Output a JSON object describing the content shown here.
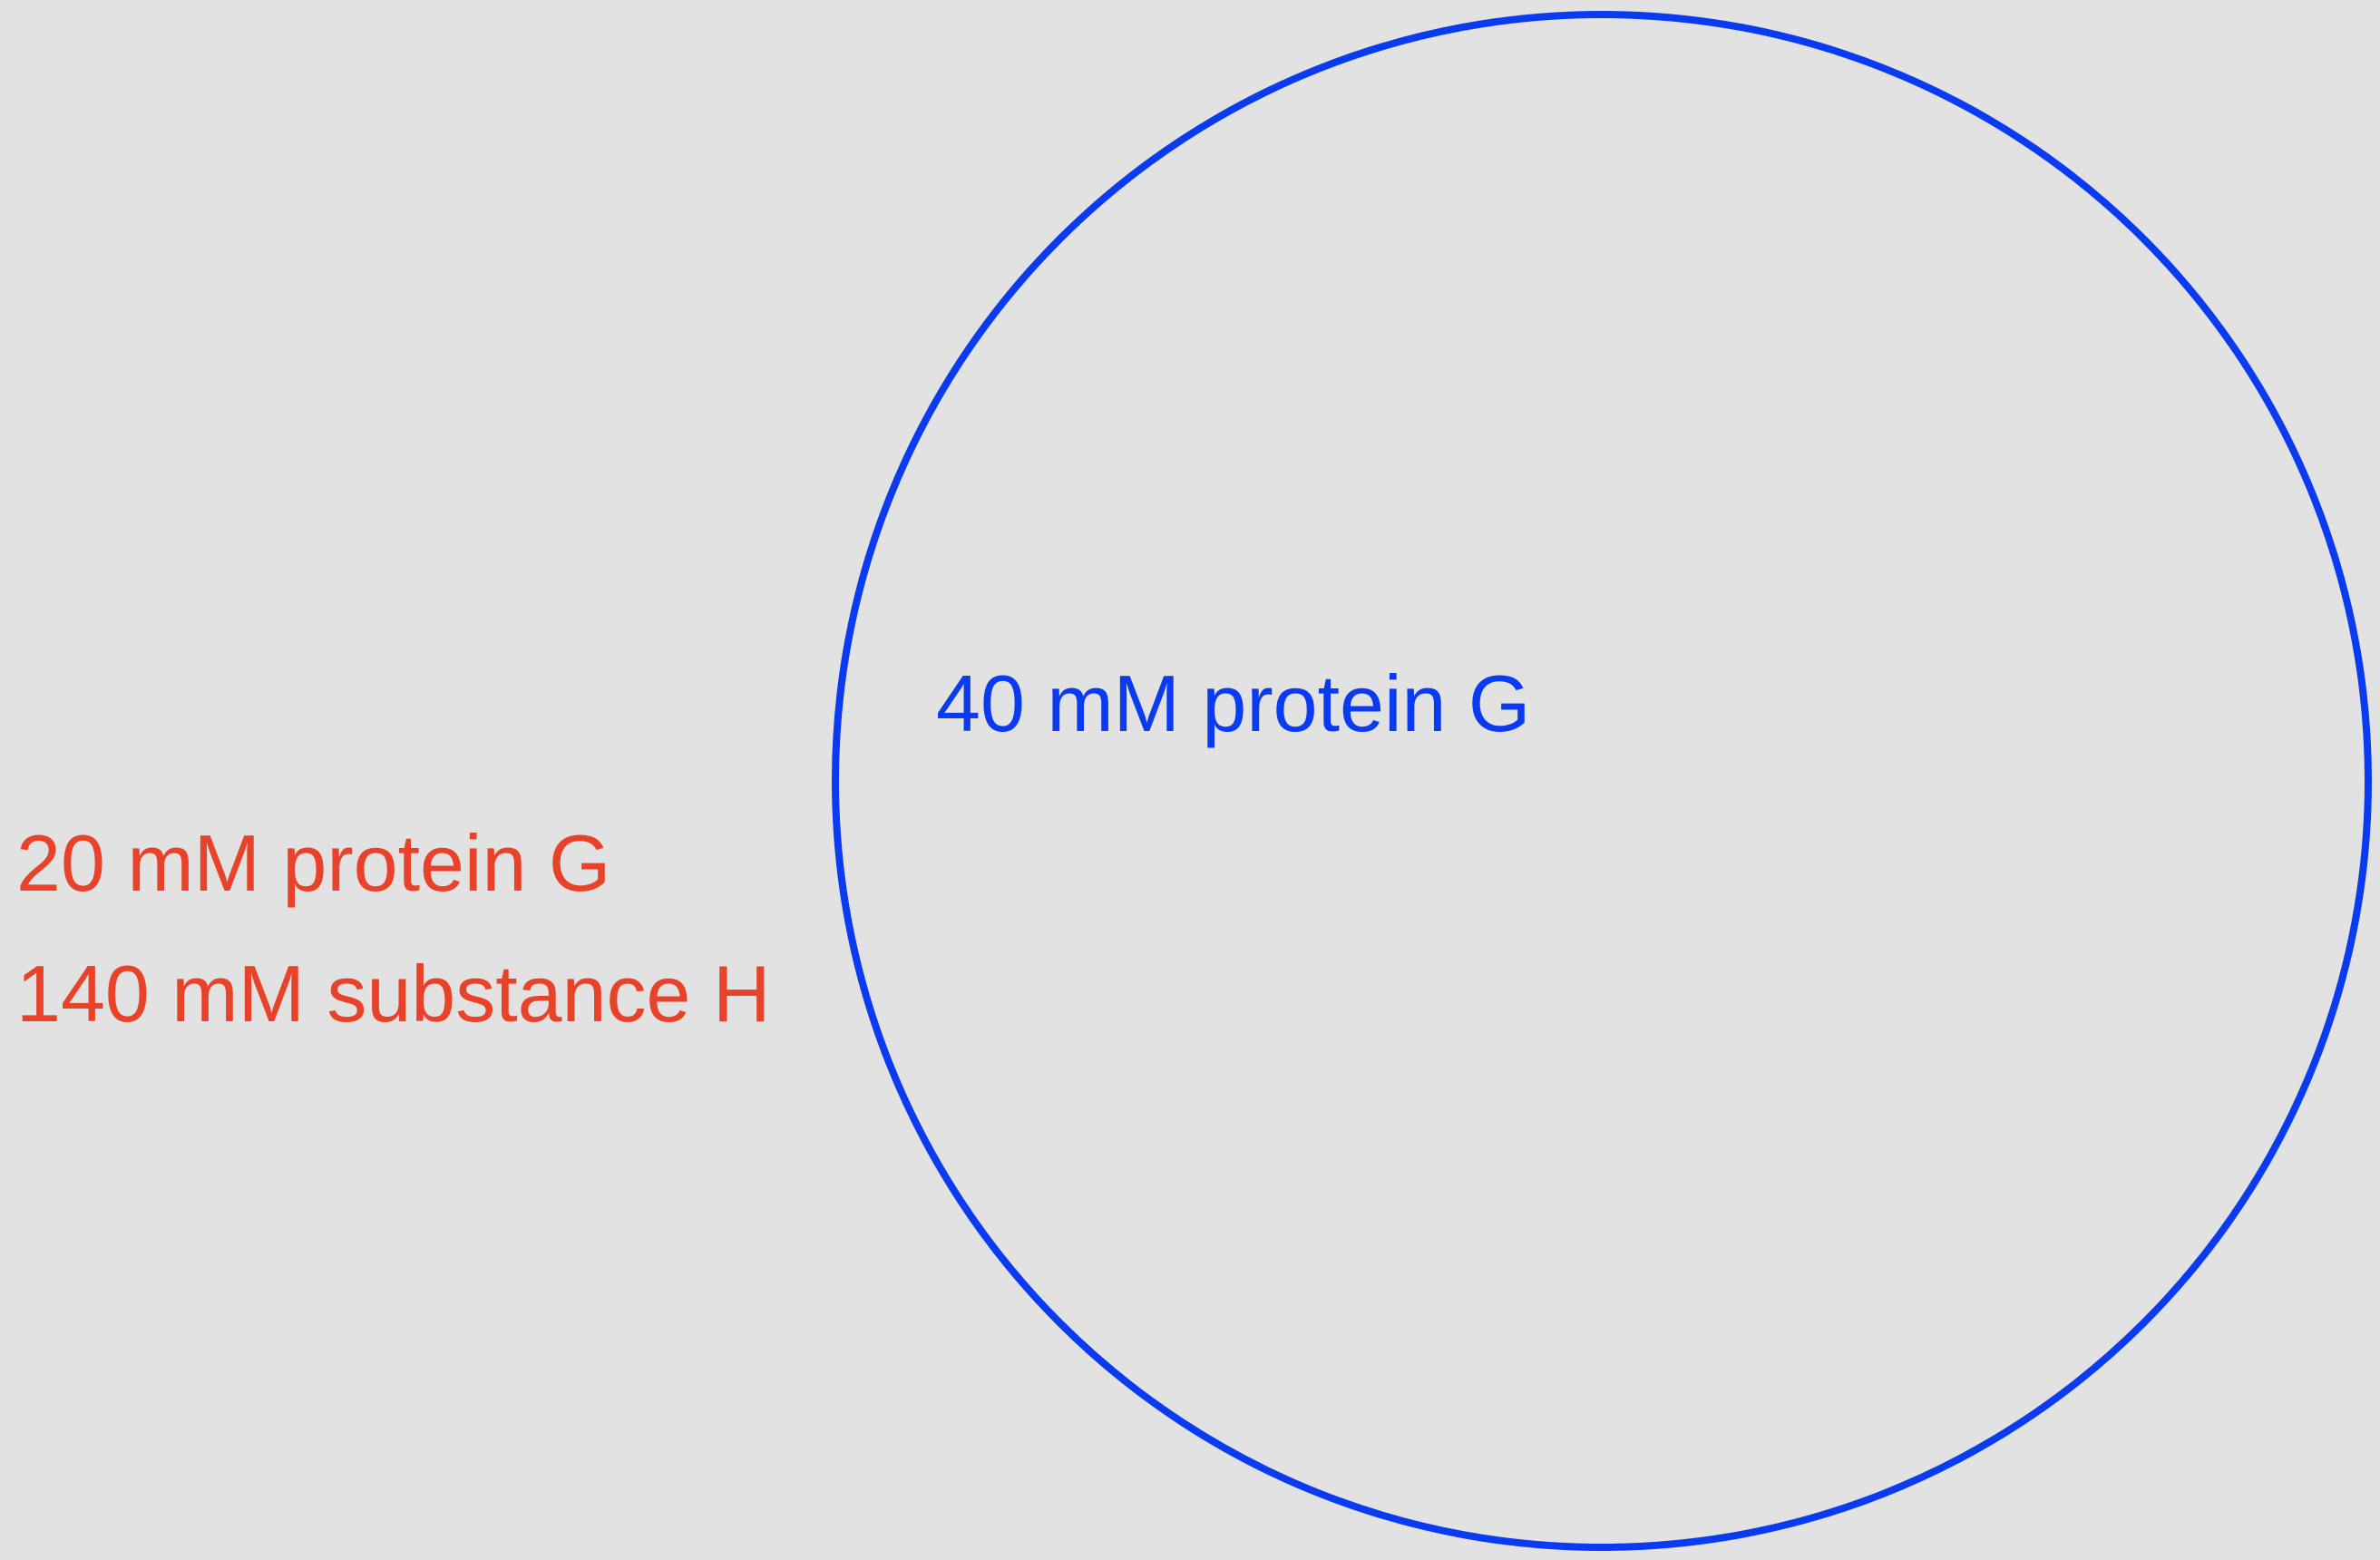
{
  "outside_solution": {
    "color": "#e8432a",
    "lines": [
      "20 mM protein G",
      "140 mM substance H"
    ]
  },
  "inside_cell": {
    "color": "#0b3bf0",
    "lines": [
      "40 mM protein G"
    ]
  },
  "colors": {
    "background": "#e2e2e2",
    "membrane": "#0b3bf0"
  }
}
